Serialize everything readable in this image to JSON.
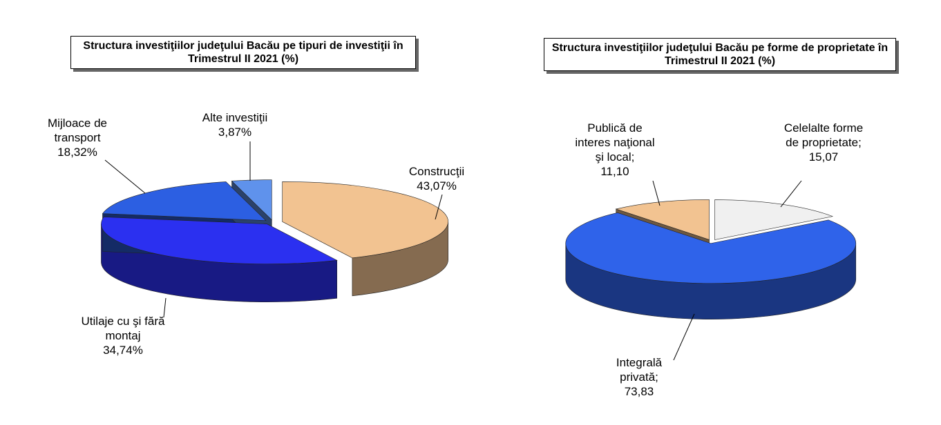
{
  "chart_data": [
    {
      "type": "pie3d",
      "title": "Structura investiţiilor judeţului Bacău pe tipuri de investiţii în Trimestrul II 2021 (%)",
      "categories": [
        "Construcţii",
        "Utilaje cu şi fără montaj",
        "Mijloace de transport",
        "Alte investiţii"
      ],
      "values": [
        43.07,
        34.74,
        18.32,
        3.87
      ],
      "value_labels": [
        "43,07%",
        "34,74%",
        "18,32%",
        "3,87%"
      ],
      "colors": [
        "#f2c391",
        "#2b30f0",
        "#2c5fe2",
        "#5f92ec"
      ]
    },
    {
      "type": "pie3d",
      "title": "Structura investiţiilor judeţului Bacău pe forme de proprietate în Trimestrul II 2021 (%)",
      "categories": [
        "Celelalte forme de proprietate;",
        "Integrală privată;",
        "Publică de interes naţional şi local;"
      ],
      "values": [
        15.07,
        73.83,
        11.1
      ],
      "value_labels": [
        "15,07",
        "73,83",
        "11,10"
      ],
      "colors": [
        "#f0f0f0",
        "#2f63ea",
        "#f2c391"
      ]
    }
  ]
}
